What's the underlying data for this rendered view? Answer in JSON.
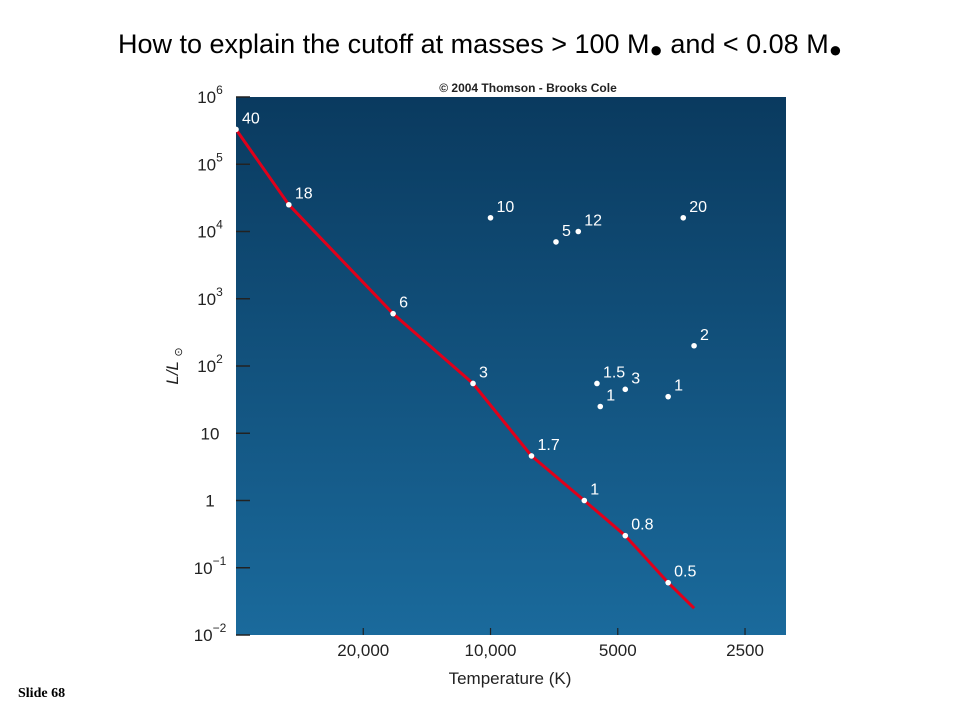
{
  "slide": {
    "title_main": "How to explain  the cutoff at masses > 100 M",
    "title_and": " and < 0.08 M",
    "sun_symbol": "●",
    "slide_number": "Slide 68"
  },
  "chart_data": {
    "type": "line",
    "copyright": "© 2004 Thomson - Brooks Cole",
    "xlabel": "Temperature (K)",
    "ylabel": "L/L",
    "ylabel_symbol": "⊙",
    "x_ticks": [
      "20,000",
      "10,000",
      "5000",
      "2500"
    ],
    "y_ticks": [
      "10^-2",
      "10^-1",
      "1",
      "10",
      "10^2",
      "10^3",
      "10^4",
      "10^5",
      "10^6"
    ],
    "x_scale": "log, reversed",
    "y_scale": "log",
    "xlim": [
      40000,
      2000
    ],
    "ylim": [
      0.01,
      1000000
    ],
    "main_sequence_line_color": "#e0001a",
    "background_top": "#0a3a5f",
    "background_bottom": "#1a6a9c",
    "series": [
      {
        "name": "",
        "points": [
          {
            "label": "40",
            "T": 40000,
            "L": 330000
          },
          {
            "label": "18",
            "T": 30000,
            "L": 25000
          },
          {
            "label": "6",
            "T": 17000,
            "L": 600
          },
          {
            "label": "3",
            "T": 11000,
            "L": 55
          },
          {
            "label": "1.7",
            "T": 8000,
            "L": 4.6
          },
          {
            "label": "1",
            "T": 6000,
            "L": 1
          },
          {
            "label": "0.8",
            "T": 4800,
            "L": 0.3
          },
          {
            "label": "0.5",
            "T": 3800,
            "L": 0.06
          },
          {
            "label": "",
            "T": 3300,
            "L": 0.025
          }
        ]
      },
      {
        "name": "",
        "points": [
          {
            "label": "10",
            "T": 10000,
            "L": 16000
          },
          {
            "label": "5",
            "T": 7000,
            "L": 7000
          },
          {
            "label": "12",
            "T": 6200,
            "L": 10000
          },
          {
            "label": "20",
            "T": 3500,
            "L": 16000
          },
          {
            "label": "2",
            "T": 3300,
            "L": 200
          },
          {
            "label": "1.5",
            "T": 5600,
            "L": 55
          },
          {
            "label": "3",
            "T": 4800,
            "L": 45
          },
          {
            "label": "1",
            "T": 3800,
            "L": 35
          },
          {
            "label": "1",
            "T": 5500,
            "L": 25
          }
        ]
      }
    ]
  }
}
